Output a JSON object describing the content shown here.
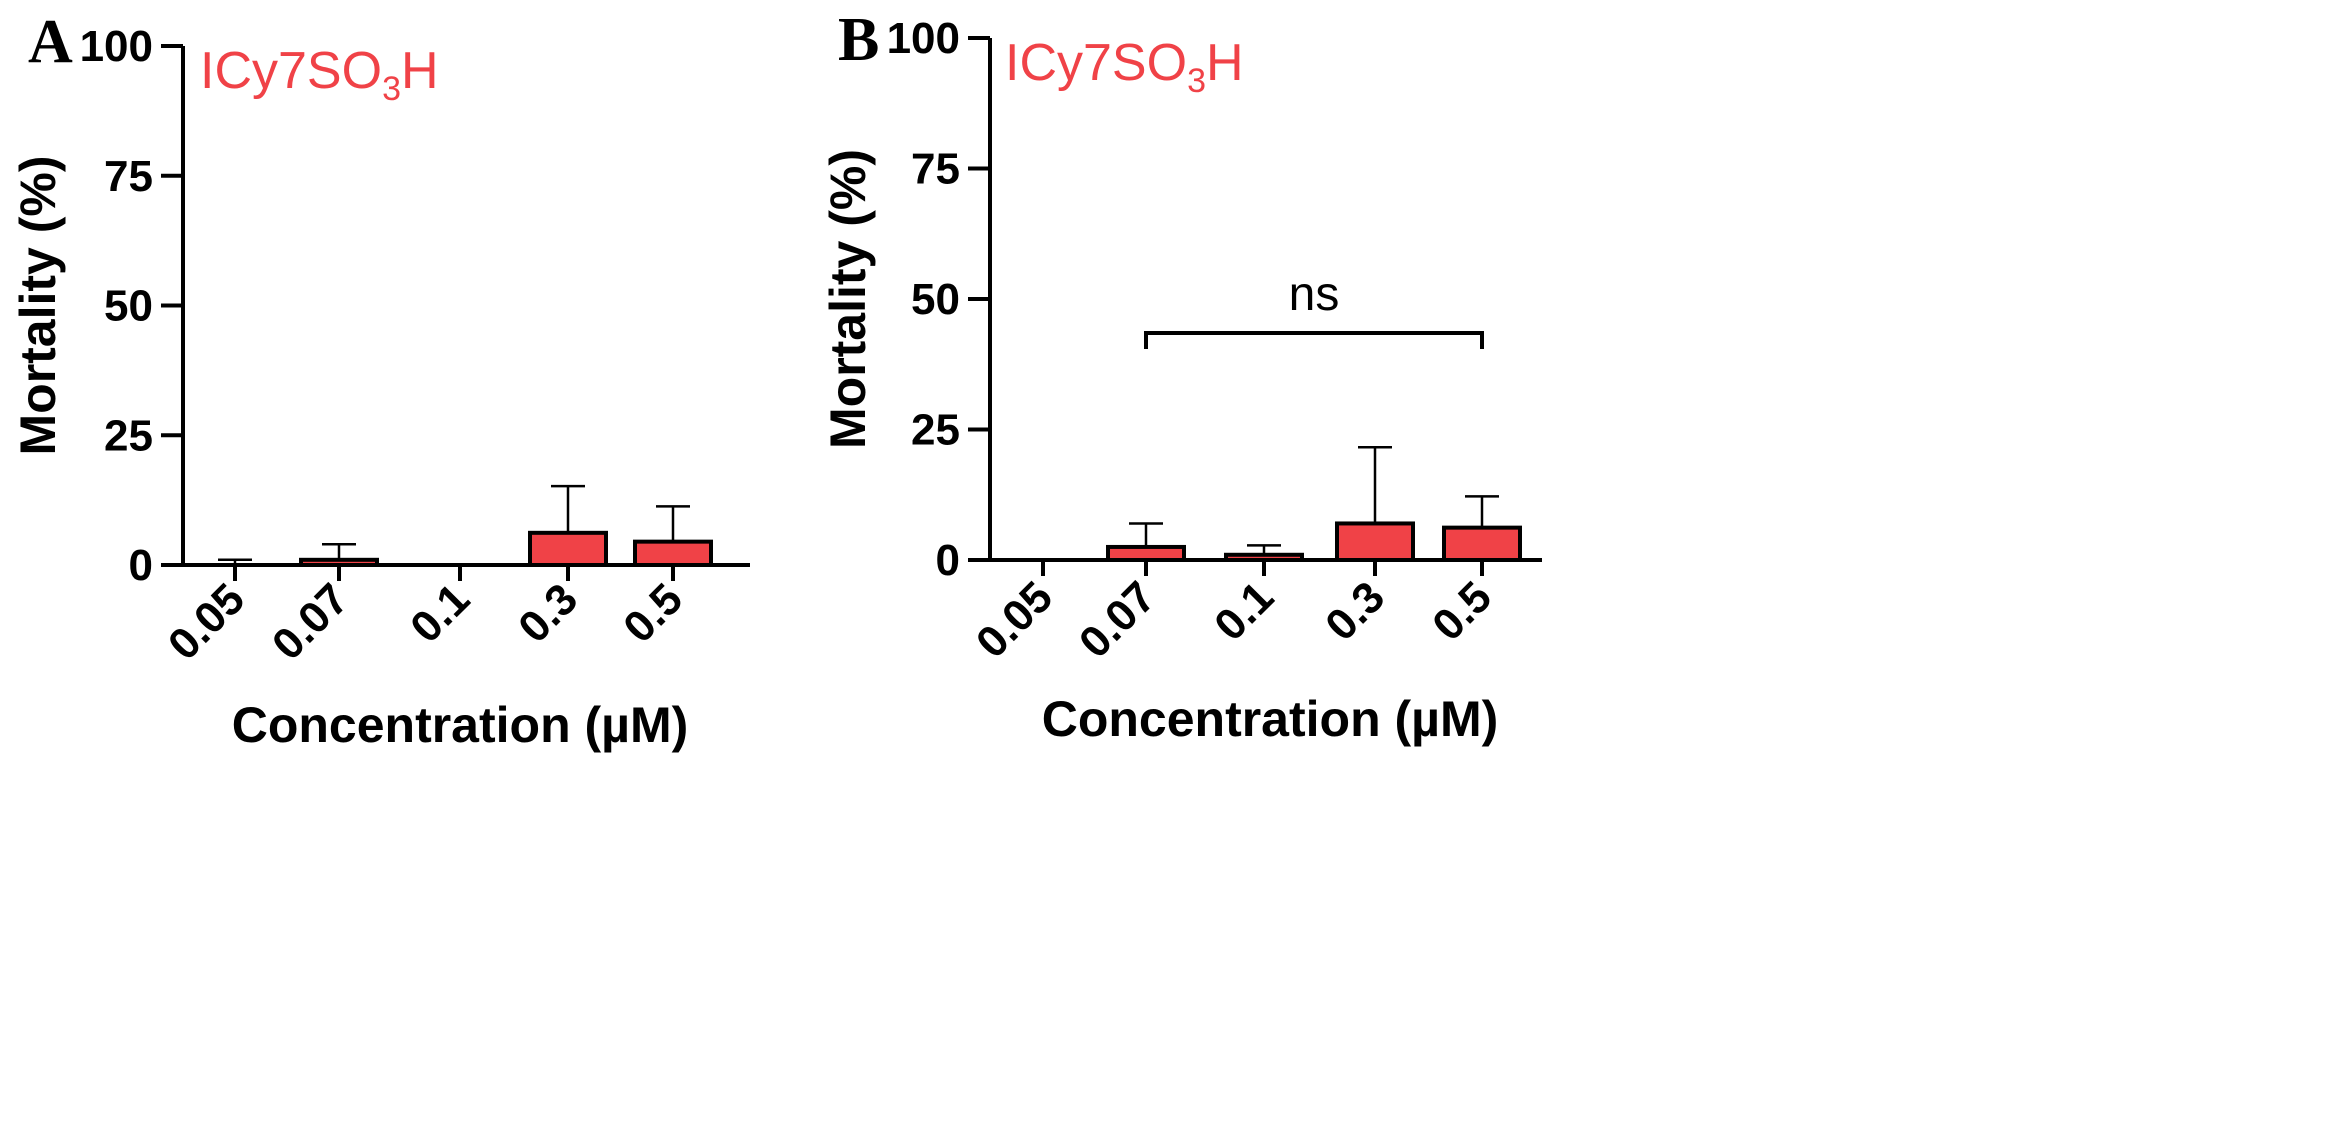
{
  "chart_data": [
    {
      "panel": "A",
      "type": "bar",
      "compound_label": {
        "main": "ICy7SO",
        "sub": "3",
        "tail": "H"
      },
      "xlabel": "Concentration (µM)",
      "ylabel": "Mortality (%)",
      "ylim": [
        0,
        100
      ],
      "yticks": [
        0,
        25,
        50,
        75,
        100
      ],
      "categories": [
        "0.05",
        "0.07",
        "0.1",
        "0.3",
        "0.5"
      ],
      "values": [
        0,
        1,
        0,
        6.2,
        4.5
      ],
      "errors": [
        1,
        3,
        0,
        9,
        6.8
      ],
      "bar_color": "#f04247",
      "significance": null
    },
    {
      "panel": "B",
      "type": "bar",
      "compound_label": {
        "main": "ICy7SO",
        "sub": "3",
        "tail": "H"
      },
      "xlabel": "Concentration (µM)",
      "ylabel": "Mortality (%)",
      "ylim": [
        0,
        100
      ],
      "yticks": [
        0,
        25,
        50,
        75,
        100
      ],
      "categories": [
        "0.05",
        "0.07",
        "0.1",
        "0.3",
        "0.5"
      ],
      "values": [
        0,
        2.5,
        1,
        7,
        6.2
      ],
      "errors": [
        0,
        4.5,
        1.8,
        14.6,
        6
      ],
      "bar_color": "#f04247",
      "significance": {
        "label": "ns",
        "from": "0.07",
        "to": "0.5"
      }
    }
  ]
}
